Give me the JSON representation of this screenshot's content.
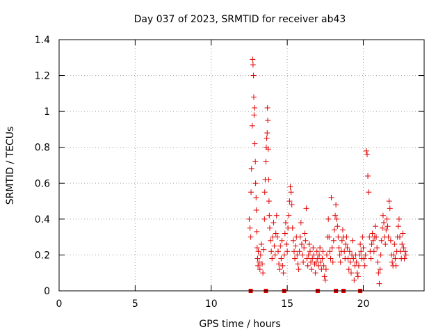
{
  "chart_data": {
    "type": "scatter",
    "title": "Day 037 of 2023, SRMTID for receiver ab43",
    "xlabel": "GPS time / hours",
    "ylabel": "SRMTID / TECUs",
    "xlim": [
      0,
      24
    ],
    "ylim": [
      0,
      1.4
    ],
    "xticks": [
      0,
      5,
      10,
      15,
      20
    ],
    "xtick_labels": [
      "0",
      "5",
      "10",
      "15",
      "20"
    ],
    "yticks": [
      0,
      0.2,
      0.4,
      0.6,
      0.8,
      1,
      1.2,
      1.4
    ],
    "ytick_labels": [
      "0",
      "0.2",
      "0.4",
      "0.6",
      "0.8",
      "1",
      "1.2",
      "1.4"
    ],
    "grid": true,
    "marker": "+",
    "color": "#e00000",
    "series": [
      {
        "name": "SRMTID",
        "points": [
          [
            12.5,
            0.4
          ],
          [
            12.55,
            0.35
          ],
          [
            12.6,
            0.3
          ],
          [
            12.62,
            0.55
          ],
          [
            12.65,
            0.68
          ],
          [
            12.7,
            0.92
          ],
          [
            12.72,
            1.29
          ],
          [
            12.75,
            1.26
          ],
          [
            12.78,
            1.2
          ],
          [
            12.8,
            1.08
          ],
          [
            12.82,
            0.98
          ],
          [
            12.85,
            1.02
          ],
          [
            12.87,
            0.82
          ],
          [
            12.9,
            0.72
          ],
          [
            12.92,
            0.6
          ],
          [
            12.95,
            0.52
          ],
          [
            12.97,
            0.45
          ],
          [
            13.0,
            0.33
          ],
          [
            13.02,
            0.24
          ],
          [
            13.05,
            0.18
          ],
          [
            13.08,
            0.14
          ],
          [
            13.1,
            0.22
          ],
          [
            13.15,
            0.16
          ],
          [
            13.2,
            0.12
          ],
          [
            13.25,
            0.2
          ],
          [
            13.3,
            0.26
          ],
          [
            13.35,
            0.15
          ],
          [
            13.4,
            0.1
          ],
          [
            13.45,
            0.23
          ],
          [
            13.5,
            0.4
          ],
          [
            13.52,
            0.55
          ],
          [
            13.55,
            0.62
          ],
          [
            13.6,
            0.72
          ],
          [
            13.62,
            0.8
          ],
          [
            13.65,
            0.85
          ],
          [
            13.68,
            0.88
          ],
          [
            13.7,
            1.02
          ],
          [
            13.72,
            0.95
          ],
          [
            13.75,
            0.79
          ],
          [
            13.78,
            0.62
          ],
          [
            13.8,
            0.5
          ],
          [
            13.82,
            0.42
          ],
          [
            13.85,
            0.35
          ],
          [
            13.9,
            0.28
          ],
          [
            13.95,
            0.22
          ],
          [
            14.0,
            0.18
          ],
          [
            14.05,
            0.3
          ],
          [
            14.1,
            0.38
          ],
          [
            14.15,
            0.25
          ],
          [
            14.2,
            0.2
          ],
          [
            14.25,
            0.32
          ],
          [
            14.3,
            0.42
          ],
          [
            14.35,
            0.3
          ],
          [
            14.4,
            0.22
          ],
          [
            14.45,
            0.15
          ],
          [
            14.5,
            0.12
          ],
          [
            14.55,
            0.25
          ],
          [
            14.6,
            0.18
          ],
          [
            14.65,
            0.28
          ],
          [
            14.7,
            0.14
          ],
          [
            14.75,
            0.1
          ],
          [
            14.8,
            0.2
          ],
          [
            14.85,
            0.32
          ],
          [
            14.9,
            0.38
          ],
          [
            14.95,
            0.26
          ],
          [
            15.0,
            0.22
          ],
          [
            15.05,
            0.35
          ],
          [
            15.1,
            0.42
          ],
          [
            15.15,
            0.5
          ],
          [
            15.2,
            0.58
          ],
          [
            15.25,
            0.55
          ],
          [
            15.3,
            0.48
          ],
          [
            15.35,
            0.35
          ],
          [
            15.4,
            0.28
          ],
          [
            15.45,
            0.22
          ],
          [
            15.5,
            0.18
          ],
          [
            15.55,
            0.25
          ],
          [
            15.6,
            0.3
          ],
          [
            15.65,
            0.2
          ],
          [
            15.7,
            0.15
          ],
          [
            15.75,
            0.12
          ],
          [
            15.8,
            0.22
          ],
          [
            15.85,
            0.3
          ],
          [
            15.9,
            0.38
          ],
          [
            15.95,
            0.26
          ],
          [
            16.0,
            0.2
          ],
          [
            16.05,
            0.16
          ],
          [
            16.1,
            0.24
          ],
          [
            16.15,
            0.32
          ],
          [
            16.2,
            0.28
          ],
          [
            16.25,
            0.46
          ],
          [
            16.3,
            0.18
          ],
          [
            16.35,
            0.14
          ],
          [
            16.4,
            0.2
          ],
          [
            16.45,
            0.26
          ],
          [
            16.5,
            0.22
          ],
          [
            16.55,
            0.16
          ],
          [
            16.6,
            0.12
          ],
          [
            16.65,
            0.18
          ],
          [
            16.7,
            0.24
          ],
          [
            16.75,
            0.2
          ],
          [
            16.8,
            0.15
          ],
          [
            16.85,
            0.1
          ],
          [
            16.9,
            0.16
          ],
          [
            16.95,
            0.22
          ],
          [
            17.0,
            0.18
          ],
          [
            17.05,
            0.14
          ],
          [
            17.1,
            0.2
          ],
          [
            17.15,
            0.24
          ],
          [
            17.2,
            0.16
          ],
          [
            17.25,
            0.12
          ],
          [
            17.3,
            0.18
          ],
          [
            17.35,
            0.22
          ],
          [
            17.4,
            0.14
          ],
          [
            17.45,
            0.08
          ],
          [
            17.5,
            0.06
          ],
          [
            17.55,
            0.12
          ],
          [
            17.6,
            0.2
          ],
          [
            17.65,
            0.3
          ],
          [
            17.7,
            0.4
          ],
          [
            17.75,
            0.3
          ],
          [
            17.8,
            0.22
          ],
          [
            17.85,
            0.18
          ],
          [
            17.9,
            0.52
          ],
          [
            17.95,
            0.24
          ],
          [
            18.0,
            0.16
          ],
          [
            18.05,
            0.28
          ],
          [
            18.1,
            0.34
          ],
          [
            18.15,
            0.42
          ],
          [
            18.2,
            0.48
          ],
          [
            18.25,
            0.4
          ],
          [
            18.3,
            0.36
          ],
          [
            18.35,
            0.3
          ],
          [
            18.4,
            0.24
          ],
          [
            18.45,
            0.2
          ],
          [
            18.5,
            0.16
          ],
          [
            18.55,
            0.22
          ],
          [
            18.6,
            0.28
          ],
          [
            18.65,
            0.34
          ],
          [
            18.7,
            0.3
          ],
          [
            18.75,
            0.22
          ],
          [
            18.8,
            0.18
          ],
          [
            18.85,
            0.26
          ],
          [
            18.9,
            0.3
          ],
          [
            18.95,
            0.24
          ],
          [
            19.0,
            0.18
          ],
          [
            19.05,
            0.12
          ],
          [
            19.1,
            0.22
          ],
          [
            19.15,
            0.16
          ],
          [
            19.2,
            0.1
          ],
          [
            19.25,
            0.2
          ],
          [
            19.3,
            0.28
          ],
          [
            19.35,
            0.18
          ],
          [
            19.4,
            0.06
          ],
          [
            19.45,
            0.14
          ],
          [
            19.5,
            0.2
          ],
          [
            19.55,
            0.16
          ],
          [
            19.6,
            0.1
          ],
          [
            19.65,
            0.08
          ],
          [
            19.7,
            0.14
          ],
          [
            19.75,
            0.2
          ],
          [
            19.8,
            0.26
          ],
          [
            19.85,
            0.22
          ],
          [
            19.9,
            0.18
          ],
          [
            19.95,
            0.3
          ],
          [
            20.0,
            0.24
          ],
          [
            20.05,
            0.18
          ],
          [
            20.1,
            0.14
          ],
          [
            20.15,
            0.2
          ],
          [
            20.2,
            0.78
          ],
          [
            20.25,
            0.76
          ],
          [
            20.3,
            0.64
          ],
          [
            20.35,
            0.55
          ],
          [
            20.4,
            0.3
          ],
          [
            20.45,
            0.22
          ],
          [
            20.5,
            0.18
          ],
          [
            20.55,
            0.26
          ],
          [
            20.6,
            0.32
          ],
          [
            20.65,
            0.28
          ],
          [
            20.7,
            0.22
          ],
          [
            20.75,
            0.3
          ],
          [
            20.8,
            0.36
          ],
          [
            20.85,
            0.3
          ],
          [
            20.9,
            0.24
          ],
          [
            20.95,
            0.16
          ],
          [
            21.0,
            0.1
          ],
          [
            21.05,
            0.04
          ],
          [
            21.1,
            0.12
          ],
          [
            21.15,
            0.2
          ],
          [
            21.2,
            0.28
          ],
          [
            21.25,
            0.35
          ],
          [
            21.3,
            0.42
          ],
          [
            21.35,
            0.38
          ],
          [
            21.4,
            0.3
          ],
          [
            21.45,
            0.26
          ],
          [
            21.5,
            0.34
          ],
          [
            21.55,
            0.4
          ],
          [
            21.6,
            0.36
          ],
          [
            21.65,
            0.3
          ],
          [
            21.7,
            0.5
          ],
          [
            21.75,
            0.46
          ],
          [
            21.8,
            0.28
          ],
          [
            21.85,
            0.2
          ],
          [
            21.9,
            0.16
          ],
          [
            21.95,
            0.14
          ],
          [
            22.0,
            0.2
          ],
          [
            22.05,
            0.26
          ],
          [
            22.1,
            0.18
          ],
          [
            22.15,
            0.14
          ],
          [
            22.2,
            0.22
          ],
          [
            22.25,
            0.3
          ],
          [
            22.3,
            0.36
          ],
          [
            22.35,
            0.4
          ],
          [
            22.4,
            0.3
          ],
          [
            22.45,
            0.22
          ],
          [
            22.5,
            0.18
          ],
          [
            22.55,
            0.26
          ],
          [
            22.6,
            0.32
          ],
          [
            22.65,
            0.24
          ],
          [
            22.7,
            0.18
          ],
          [
            22.75,
            0.22
          ],
          [
            22.8,
            0.2
          ]
        ]
      }
    ],
    "gap_markers_x": [
      12.6,
      13.6,
      14.8,
      17.0,
      18.2,
      18.7,
      19.8
    ]
  }
}
